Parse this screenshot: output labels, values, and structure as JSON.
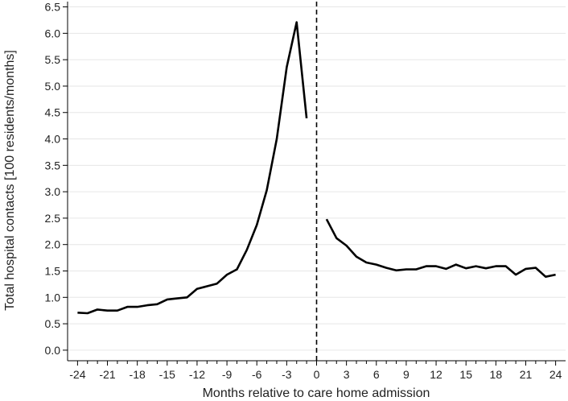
{
  "chart_data": {
    "type": "line",
    "title": "",
    "xlabel": "Months relative to care home admission",
    "ylabel": "Total hospital contacts [100 residents/months]",
    "xlim": [
      -25,
      25
    ],
    "ylim": [
      -0.2,
      6.6
    ],
    "xticks": [
      -24,
      -21,
      -18,
      -15,
      -12,
      -9,
      -6,
      -3,
      0,
      3,
      6,
      9,
      12,
      15,
      18,
      21,
      24
    ],
    "yticks": [
      0.0,
      0.5,
      1.0,
      1.5,
      2.0,
      2.5,
      3.0,
      3.5,
      4.0,
      4.5,
      5.0,
      5.5,
      6.0,
      6.5
    ],
    "grid": "horizontal",
    "reference_line": {
      "x": 0,
      "style": "dashed"
    },
    "color": "#000000",
    "series": [
      {
        "x": [
          -24,
          -23,
          -22,
          -21,
          -20,
          -19,
          -18,
          -17,
          -16,
          -15,
          -14,
          -13,
          -12,
          -11,
          -10,
          -9,
          -8,
          -7,
          -6,
          -5,
          -4,
          -3,
          -2,
          -1
        ],
        "values": [
          0.71,
          0.7,
          0.77,
          0.75,
          0.75,
          0.82,
          0.82,
          0.85,
          0.87,
          0.96,
          0.98,
          1.0,
          1.16,
          1.21,
          1.26,
          1.43,
          1.53,
          1.9,
          2.37,
          3.03,
          4.0,
          5.36,
          6.21,
          4.39
        ]
      },
      {
        "x": [
          1,
          2,
          3,
          4,
          5,
          6,
          7,
          8,
          9,
          10,
          11,
          12,
          13,
          14,
          15,
          16,
          17,
          18,
          19,
          20,
          21,
          22,
          23,
          24
        ],
        "values": [
          2.48,
          2.12,
          1.98,
          1.77,
          1.66,
          1.62,
          1.56,
          1.51,
          1.53,
          1.53,
          1.59,
          1.59,
          1.54,
          1.62,
          1.55,
          1.59,
          1.55,
          1.59,
          1.59,
          1.43,
          1.54,
          1.56,
          1.39,
          1.43
        ]
      }
    ]
  }
}
